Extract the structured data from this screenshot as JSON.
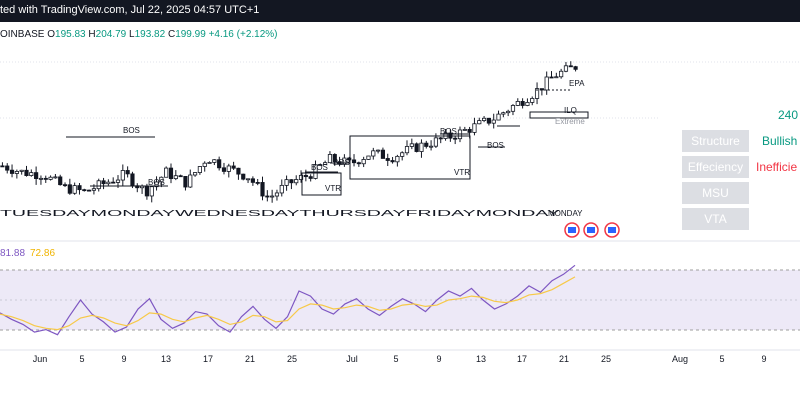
{
  "header": {
    "title": "ted with TradingView.com, Jul 22, 2025 04:57 UTC+1"
  },
  "ohlc": {
    "exchange": "OINBASE",
    "open_label": "O",
    "open": "195.83",
    "high_label": "H",
    "high": "204.79",
    "low_label": "L",
    "low": "193.82",
    "close_label": "C",
    "close": "199.99",
    "change": "+4.16 (+2.12%)"
  },
  "side_panel": {
    "value_top": "240",
    "rows": [
      {
        "label": "Structure",
        "value": "Bullish",
        "value_color": "#089981"
      },
      {
        "label": "Effeciency",
        "value": "Inefficie",
        "value_color": "#f23645"
      },
      {
        "label": "MSU",
        "value": ""
      },
      {
        "label": "VTA",
        "value": ""
      }
    ]
  },
  "indicator": {
    "value1": "81.88",
    "value2": "72.86",
    "value1_color": "#7e57c2",
    "value2_color": "#f7c948"
  },
  "colors": {
    "up": "#089981",
    "down": "#f23645",
    "candle": "#131722",
    "rsi": "#7e57c2",
    "ma": "#f7c948",
    "band": "#ede9f7"
  },
  "chart_data": [
    {
      "type": "candlestick",
      "title": "",
      "x": [
        "Jun",
        "5",
        "9",
        "13",
        "17",
        "21",
        "25",
        "Jul",
        "5",
        "9",
        "13",
        "17",
        "21",
        "25",
        "Aug",
        "5",
        "9"
      ],
      "close_trend": [
        154,
        151,
        150,
        144,
        142,
        146,
        150,
        142,
        151,
        146,
        158,
        153,
        149,
        139,
        146,
        150,
        157,
        155,
        160,
        158,
        162,
        165,
        168,
        172,
        176,
        182,
        188,
        196,
        200
      ],
      "annotations": [
        "BOS",
        "BOS",
        "BOS",
        "BOS",
        "BOS",
        "BOS",
        "VTR",
        "VTR",
        "EPA",
        "ILQ",
        "Extreme"
      ],
      "session_labels": "TUESDAYMONDAYWEDNESDAYTHURSDAYFRIDAYMONDAY",
      "last_session_label": "MONDAY"
    },
    {
      "type": "line",
      "title": "",
      "series": [
        {
          "values": [
            45,
            40,
            36,
            30,
            32,
            28,
            42,
            55,
            44,
            38,
            30,
            34,
            48,
            56,
            40,
            33,
            37,
            46,
            44,
            35,
            30,
            42,
            50,
            40,
            33,
            42,
            62,
            58,
            48,
            44,
            52,
            56,
            48,
            43,
            50,
            56,
            52,
            46,
            55,
            62,
            58,
            64,
            55,
            48,
            52,
            58,
            66,
            61,
            70,
            75,
            82
          ]
        },
        {
          "values": [
            44,
            42,
            39,
            35,
            33,
            32,
            35,
            41,
            43,
            41,
            37,
            35,
            39,
            45,
            44,
            40,
            38,
            41,
            43,
            40,
            36,
            38,
            43,
            42,
            38,
            39,
            48,
            52,
            51,
            48,
            49,
            51,
            50,
            47,
            48,
            51,
            52,
            50,
            51,
            55,
            56,
            58,
            57,
            54,
            53,
            55,
            59,
            60,
            63,
            68,
            73
          ]
        }
      ]
    }
  ]
}
